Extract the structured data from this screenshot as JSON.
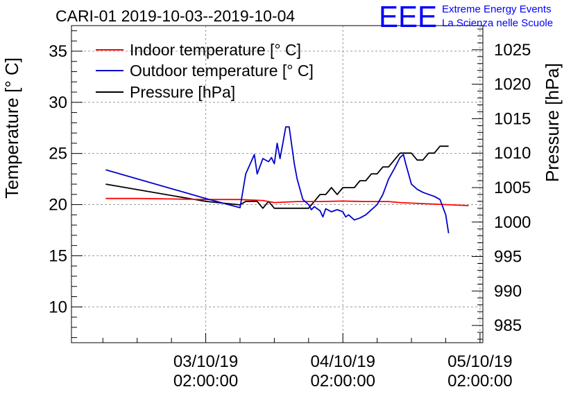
{
  "chart_data": {
    "type": "line",
    "title": "CARI-01 2019-10-03--2019-10-04",
    "logo": {
      "letters": "EEE",
      "line1": "Extreme Energy Events",
      "line2": "La Scienza nelle Scuole"
    },
    "ylabel_left": "Temperature [° C]",
    "ylabel_right": "Pressure [hPa]",
    "x_ticks": [
      {
        "date": "03/10/19",
        "time": "02:00:00",
        "hours": 24
      },
      {
        "date": "04/10/19",
        "time": "02:00:00",
        "hours": 48
      },
      {
        "date": "05/10/19",
        "time": "02:00:00",
        "hours": 72
      }
    ],
    "x_axis_note": "hours since 2019-10-02 02:00:00",
    "xlim": [
      0.5,
      72.5
    ],
    "ylim_left": [
      6.5,
      37.5
    ],
    "ylim_right": [
      982.5,
      1028.5
    ],
    "left_ticks": [
      10,
      15,
      20,
      25,
      30,
      35
    ],
    "right_ticks": [
      985,
      990,
      995,
      1000,
      1005,
      1010,
      1015,
      1020,
      1025
    ],
    "grid": true,
    "legend_position": "top-left",
    "series": [
      {
        "name": "Indoor temperature [° C]",
        "color": "#ff0000",
        "axis": "left",
        "points": [
          [
            6.5,
            20.6
          ],
          [
            12,
            20.6
          ],
          [
            18,
            20.55
          ],
          [
            24,
            20.5
          ],
          [
            30,
            20.5
          ],
          [
            34,
            20.4
          ],
          [
            36,
            20.2
          ],
          [
            40,
            20.3
          ],
          [
            44,
            20.3
          ],
          [
            48,
            20.35
          ],
          [
            52,
            20.3
          ],
          [
            56,
            20.3
          ],
          [
            58,
            20.2
          ],
          [
            62,
            20.1
          ],
          [
            66,
            20.0
          ],
          [
            70,
            19.9
          ]
        ]
      },
      {
        "name": "Outdoor temperature [° C]",
        "color": "#0000cc",
        "axis": "left",
        "points": [
          [
            6.5,
            23.4
          ],
          [
            24,
            20.6
          ],
          [
            30,
            19.7
          ],
          [
            31,
            23.0
          ],
          [
            32.5,
            24.9
          ],
          [
            33,
            23.0
          ],
          [
            34,
            24.5
          ],
          [
            35,
            24.2
          ],
          [
            35.5,
            24.6
          ],
          [
            36,
            24.0
          ],
          [
            36.5,
            26.0
          ],
          [
            37,
            24.5
          ],
          [
            37.5,
            26.0
          ],
          [
            38,
            27.6
          ],
          [
            38.6,
            27.6
          ],
          [
            39,
            26.0
          ],
          [
            39.5,
            24.0
          ],
          [
            40,
            22.5
          ],
          [
            41,
            20.5
          ],
          [
            42,
            20.0
          ],
          [
            42.5,
            19.5
          ],
          [
            43,
            19.8
          ],
          [
            44,
            19.4
          ],
          [
            44.5,
            18.8
          ],
          [
            45,
            19.6
          ],
          [
            46,
            19.3
          ],
          [
            47,
            19.5
          ],
          [
            48,
            19.3
          ],
          [
            48.5,
            18.8
          ],
          [
            49,
            19.0
          ],
          [
            50,
            18.5
          ],
          [
            51,
            18.7
          ],
          [
            52,
            19.0
          ],
          [
            53,
            19.5
          ],
          [
            54,
            20.0
          ],
          [
            55,
            21.0
          ],
          [
            56,
            22.5
          ],
          [
            57,
            23.5
          ],
          [
            58,
            24.6
          ],
          [
            58.6,
            24.9
          ],
          [
            59,
            24.0
          ],
          [
            60,
            22.0
          ],
          [
            61,
            21.5
          ],
          [
            62,
            21.2
          ],
          [
            63,
            21.0
          ],
          [
            64,
            20.8
          ],
          [
            65,
            20.5
          ],
          [
            66,
            19.0
          ],
          [
            66.5,
            17.2
          ]
        ]
      },
      {
        "name": "Pressure [hPa]",
        "color": "#000000",
        "axis": "right",
        "points": [
          [
            6.5,
            1005.5
          ],
          [
            24,
            1003
          ],
          [
            30,
            1002.5
          ],
          [
            31,
            1003
          ],
          [
            33,
            1003
          ],
          [
            34,
            1002
          ],
          [
            35,
            1003
          ],
          [
            36,
            1002
          ],
          [
            42,
            1002
          ],
          [
            43,
            1003
          ],
          [
            44,
            1004
          ],
          [
            45,
            1004
          ],
          [
            46,
            1005
          ],
          [
            47,
            1004
          ],
          [
            48,
            1005
          ],
          [
            50,
            1005
          ],
          [
            51,
            1006
          ],
          [
            52,
            1006
          ],
          [
            53,
            1007
          ],
          [
            54,
            1007
          ],
          [
            55,
            1008
          ],
          [
            56,
            1008
          ],
          [
            57,
            1009
          ],
          [
            58,
            1010
          ],
          [
            60,
            1010
          ],
          [
            61,
            1009
          ],
          [
            62,
            1009
          ],
          [
            63,
            1010
          ],
          [
            64,
            1010
          ],
          [
            65,
            1011
          ],
          [
            66.5,
            1011
          ]
        ]
      }
    ]
  }
}
